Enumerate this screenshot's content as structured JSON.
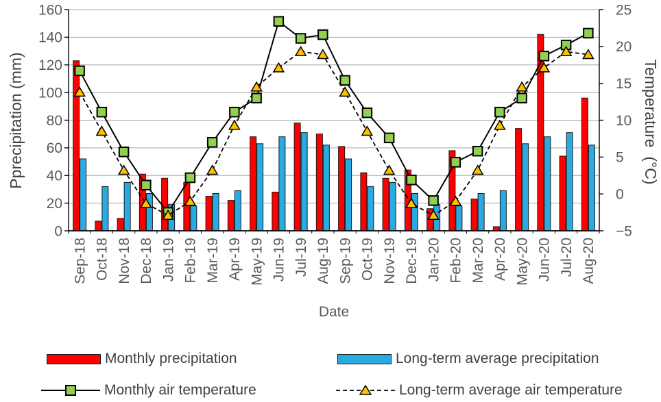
{
  "chart_data": {
    "type": "combo-bar-line",
    "categories": [
      "Sep-18",
      "Oct-18",
      "Nov-18",
      "Dec-18",
      "Jan-19",
      "Feb-19",
      "Mar-19",
      "Apr-19",
      "May-19",
      "Jun-19",
      "Jul-19",
      "Aug-19",
      "Sep-19",
      "Oct-19",
      "Nov-19",
      "Dec-19",
      "Jan-20",
      "Feb-20",
      "Mar-20",
      "Apr-20",
      "May-20",
      "Jun-20",
      "Jul-20",
      "Aug-20"
    ],
    "series": [
      {
        "name": "Monthly precipitation",
        "type": "bar",
        "axis": "left",
        "color": "#FF0000",
        "values": [
          123,
          7,
          9,
          41,
          38,
          35,
          25,
          22,
          68,
          28,
          78,
          70,
          61,
          42,
          38,
          44,
          16,
          58,
          23,
          3,
          74,
          142,
          54,
          96
        ]
      },
      {
        "name": "Long-term average precipitation",
        "type": "bar",
        "axis": "left",
        "color": "#29ABE2",
        "values": [
          52,
          32,
          35,
          27,
          19,
          18,
          27,
          29,
          63,
          68,
          71,
          62,
          52,
          32,
          35,
          27,
          19,
          18,
          27,
          29,
          63,
          68,
          71,
          62
        ]
      },
      {
        "name": "Monthly air temperature",
        "type": "line",
        "axis": "right",
        "line_style": "solid",
        "line_color": "#000000",
        "marker": "square",
        "marker_color": "#92D050",
        "values": [
          16.7,
          11.1,
          5.7,
          1.2,
          -2.5,
          2.2,
          7.0,
          11.1,
          13.0,
          23.4,
          21.1,
          21.6,
          15.4,
          11.0,
          7.6,
          1.9,
          -0.9,
          4.3,
          5.8,
          11.1,
          13.0,
          18.7,
          20.2,
          21.8
        ]
      },
      {
        "name": "Long-term average air temperature",
        "type": "line",
        "axis": "right",
        "line_style": "dashed",
        "line_color": "#000000",
        "marker": "triangle",
        "marker_color": "#FFC000",
        "values": [
          13.8,
          8.5,
          3.2,
          -1.3,
          -2.9,
          -1.0,
          3.2,
          9.3,
          14.5,
          17.1,
          19.3,
          18.9,
          13.8,
          8.5,
          3.2,
          -1.3,
          -2.9,
          -1.0,
          3.2,
          9.3,
          14.5,
          17.1,
          19.3,
          18.9
        ]
      }
    ],
    "xlabel": "Date",
    "ylabel_left": "Pprecipitation (mm)",
    "ylabel_right": "Temperature  (°C)",
    "ylim_left": [
      0,
      160
    ],
    "ytick_step_left": 20,
    "yticks_left": [
      "0",
      "20",
      "40",
      "60",
      "80",
      "100",
      "120",
      "140",
      "160"
    ],
    "ylim_right": [
      -5,
      25
    ],
    "ytick_step_right": 5,
    "yticks_right": [
      "−5",
      "0",
      "5",
      "10",
      "15",
      "20",
      "25"
    ],
    "grid": true,
    "legend_position": "bottom",
    "style": {
      "grid_color": "#A6A6A6",
      "axis_color": "#000000",
      "tick_text_color": "#595959",
      "title_text_color": "#404040",
      "bar_border_color": "#1a1a1a"
    }
  }
}
